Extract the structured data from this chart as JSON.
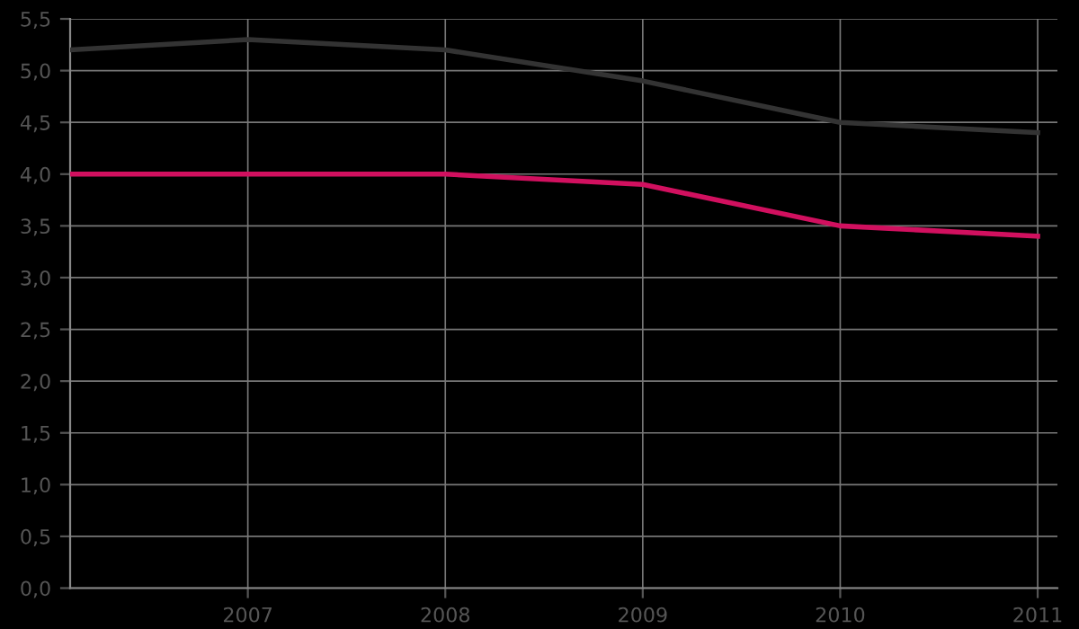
{
  "chart_data": {
    "type": "line",
    "x": [
      2006.1,
      2007,
      2008,
      2009,
      2010,
      2011
    ],
    "series": [
      {
        "color": "#333333",
        "values": [
          5.2,
          5.3,
          5.2,
          4.9,
          4.5,
          4.4
        ]
      },
      {
        "color": "#d1105f",
        "values": [
          4.0,
          4.0,
          4.0,
          3.9,
          3.5,
          3.4
        ]
      }
    ],
    "xlim": [
      2006.1,
      2011.1
    ],
    "xticks": [
      2007,
      2008,
      2009,
      2010,
      2011
    ],
    "ylim": [
      0,
      5.5
    ],
    "yticks": [
      {
        "value": 0,
        "label": "0,0"
      },
      {
        "value": 0.5,
        "label": "0,5"
      },
      {
        "value": 1,
        "label": "1,0"
      },
      {
        "value": 1.5,
        "label": "1,5"
      },
      {
        "value": 2,
        "label": "2,0"
      },
      {
        "value": 2.5,
        "label": "2,5"
      },
      {
        "value": 3,
        "label": "3,0"
      },
      {
        "value": 3.5,
        "label": "3,5"
      },
      {
        "value": 4,
        "label": "4,0"
      },
      {
        "value": 4.5,
        "label": "4,5"
      },
      {
        "value": 5,
        "label": "5,0"
      },
      {
        "value": 5.5,
        "label": "5,5"
      }
    ],
    "grid": true,
    "marker": "none",
    "line_style": "solid"
  }
}
